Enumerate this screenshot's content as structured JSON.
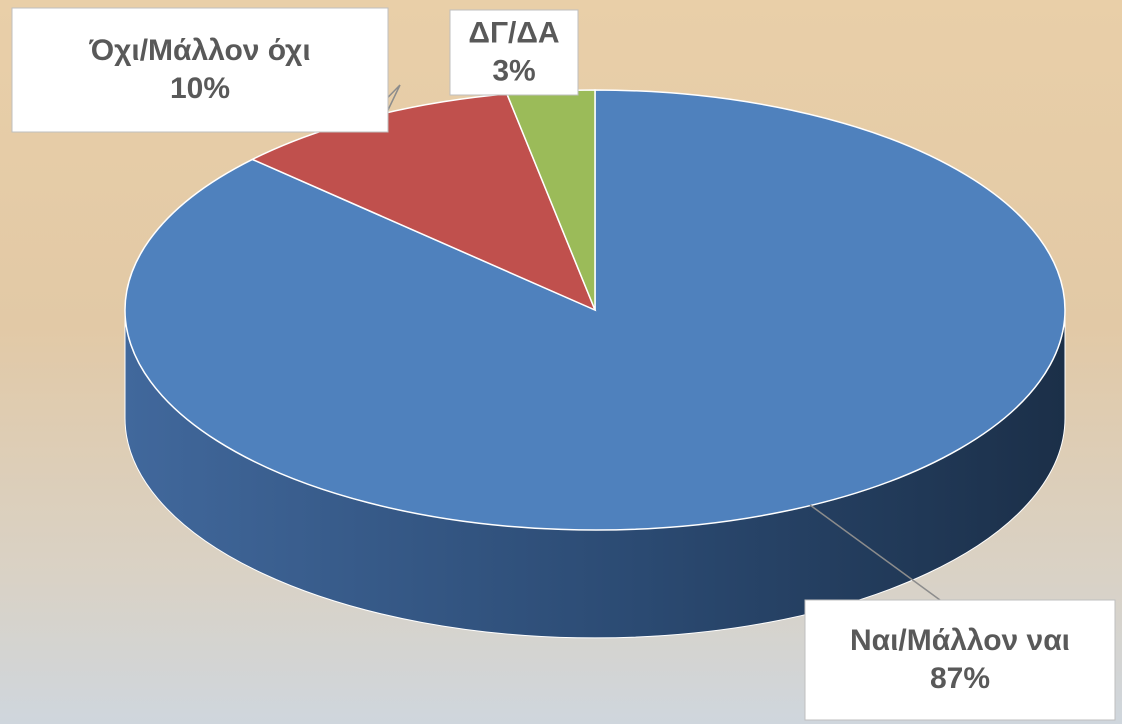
{
  "chart_data": {
    "type": "pie3d",
    "categories": [
      "Ναι/Μάλλον ναι",
      "Όχι/Μάλλον όχι",
      "ΔΓ/ΔΑ"
    ],
    "values": [
      87,
      10,
      3
    ],
    "value_labels": [
      "87%",
      "10%",
      "3%"
    ],
    "colors": [
      "#4f81bd",
      "#c0504d",
      "#9bbb59"
    ]
  }
}
